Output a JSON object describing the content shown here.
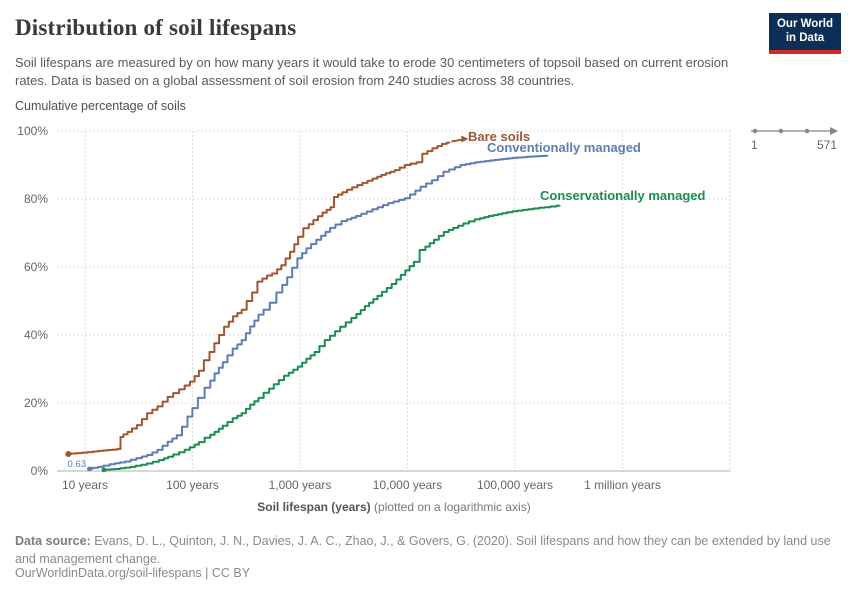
{
  "header": {
    "title": "Distribution of soil lifespans",
    "subtitle": "Soil lifespans are measured by on how many years it would take to erode 30 centimeters of topsoil based on current erosion rates. Data is based on a global assessment of soil erosion from 240 studies across 38 countries.",
    "logo": {
      "line1": "Our World",
      "line2": "in Data"
    }
  },
  "chart": {
    "y_axis_title": "Cumulative percentage of soils",
    "x_axis_title_bold": "Soil lifespan (years)",
    "x_axis_title_note": " (plotted on a logarithmic axis)",
    "start_value_label": "0.63",
    "range_widget": {
      "min": "1",
      "max": "571"
    }
  },
  "footer": {
    "source_label": "Data source:",
    "source_text": " Evans, D. L., Quinton, J. N., Davies, J. A. C., Zhao, J., & Govers, G. (2020). Soil lifespans and how they can be extended by land use and management change.",
    "url": "OurWorldinData.org/soil-lifespans",
    "separator": " | ",
    "license": "CC BY"
  },
  "chart_data": {
    "type": "line",
    "title": "Distribution of soil lifespans",
    "xlabel": "Soil lifespan (years) (plotted on a logarithmic axis)",
    "ylabel": "Cumulative percentage of soils",
    "x_scale": "log10",
    "ylim": [
      0,
      100
    ],
    "grid": true,
    "legend_position": "end-of-line-labels",
    "x_ticks": [
      {
        "value": 10,
        "label": "10 years"
      },
      {
        "value": 100,
        "label": "100 years"
      },
      {
        "value": 1000,
        "label": "1,000 years"
      },
      {
        "value": 10000,
        "label": "10,000 years"
      },
      {
        "value": 100000,
        "label": "100,000 years"
      },
      {
        "value": 1000000,
        "label": "1 million years"
      }
    ],
    "x_grid_values": [
      10,
      100,
      1000,
      10000,
      100000,
      1000000,
      10000000
    ],
    "y_ticks": [
      {
        "value": 0,
        "label": "0%"
      },
      {
        "value": 20,
        "label": "20%"
      },
      {
        "value": 40,
        "label": "40%"
      },
      {
        "value": 60,
        "label": "60%"
      },
      {
        "value": 80,
        "label": "80%"
      },
      {
        "value": 100,
        "label": "100%"
      }
    ],
    "series": [
      {
        "name": "Bare soils",
        "color": "#A1562E",
        "start_marker": true,
        "end_arrow": true,
        "points": [
          [
            7,
            5
          ],
          [
            10,
            5.4
          ],
          [
            14,
            5.9
          ],
          [
            19,
            6.3
          ],
          [
            21,
            6.5
          ],
          [
            21.8,
            10
          ],
          [
            26,
            11.5
          ],
          [
            32,
            13.5
          ],
          [
            40,
            17
          ],
          [
            50,
            19
          ],
          [
            62,
            21.8
          ],
          [
            80,
            24
          ],
          [
            100,
            26.3
          ],
          [
            120,
            29.5
          ],
          [
            136,
            32.6
          ],
          [
            152,
            35
          ],
          [
            168,
            37.6
          ],
          [
            186,
            40
          ],
          [
            208,
            42.4
          ],
          [
            250,
            45.5
          ],
          [
            300,
            47.4
          ],
          [
            340,
            50
          ],
          [
            380,
            52.5
          ],
          [
            425,
            55.7
          ],
          [
            520,
            57.5
          ],
          [
            585,
            58.1
          ],
          [
            700,
            60.5
          ],
          [
            850,
            64.5
          ],
          [
            1000,
            68.9
          ],
          [
            1150,
            71.4
          ],
          [
            1400,
            73.8
          ],
          [
            1700,
            76
          ],
          [
            2000,
            77.6
          ],
          [
            2150,
            80.6
          ],
          [
            2600,
            82
          ],
          [
            3600,
            84.1
          ],
          [
            5000,
            86
          ],
          [
            6000,
            87.1
          ],
          [
            8000,
            88.5
          ],
          [
            10000,
            90
          ],
          [
            13000,
            90.8
          ],
          [
            14500,
            93.3
          ],
          [
            18000,
            94.9
          ],
          [
            22000,
            96.2
          ],
          [
            24500,
            96.6
          ]
        ]
      },
      {
        "name": "Conventionally managed",
        "color": "#5E7DB3",
        "start_marker": true,
        "start_value_label": "0.63",
        "points": [
          [
            11,
            0.63
          ],
          [
            14,
            1.2
          ],
          [
            18,
            2
          ],
          [
            25,
            2.8
          ],
          [
            32,
            3.8
          ],
          [
            40,
            4.7
          ],
          [
            50,
            6.2
          ],
          [
            62,
            8.6
          ],
          [
            75,
            10.5
          ],
          [
            85,
            13
          ],
          [
            95,
            16
          ],
          [
            105,
            18.5
          ],
          [
            120,
            21.5
          ],
          [
            140,
            24.5
          ],
          [
            168,
            28.7
          ],
          [
            200,
            32
          ],
          [
            250,
            36
          ],
          [
            300,
            38.5
          ],
          [
            360,
            42.5
          ],
          [
            430,
            46
          ],
          [
            490,
            47.4
          ],
          [
            560,
            49.5
          ],
          [
            650,
            52.5
          ],
          [
            800,
            57
          ],
          [
            1000,
            62.6
          ],
          [
            1200,
            65.5
          ],
          [
            1500,
            68
          ],
          [
            2000,
            71.5
          ],
          [
            2600,
            73.5
          ],
          [
            3500,
            75
          ],
          [
            5000,
            77
          ],
          [
            7000,
            78.8
          ],
          [
            10000,
            80.2
          ],
          [
            14000,
            83.6
          ],
          [
            18000,
            85.5
          ],
          [
            23000,
            88
          ],
          [
            33000,
            90
          ],
          [
            45000,
            90.8
          ],
          [
            68000,
            91.5
          ],
          [
            100000,
            92.1
          ],
          [
            150000,
            92.5
          ],
          [
            200000,
            92.7
          ]
        ]
      },
      {
        "name": "Conservationally managed",
        "color": "#1D8C51",
        "start_marker": true,
        "points": [
          [
            15,
            0.3
          ],
          [
            20,
            0.6
          ],
          [
            28,
            1.2
          ],
          [
            40,
            2.2
          ],
          [
            52,
            3.2
          ],
          [
            62,
            4.2
          ],
          [
            80,
            5.5
          ],
          [
            100,
            7
          ],
          [
            120,
            8.5
          ],
          [
            140,
            9.8
          ],
          [
            168,
            11.5
          ],
          [
            200,
            13.3
          ],
          [
            250,
            15.5
          ],
          [
            300,
            17
          ],
          [
            360,
            19.5
          ],
          [
            430,
            21.5
          ],
          [
            490,
            23
          ],
          [
            600,
            25.5
          ],
          [
            750,
            28
          ],
          [
            1000,
            30.7
          ],
          [
            1200,
            33
          ],
          [
            1430,
            35
          ],
          [
            1800,
            38.5
          ],
          [
            2500,
            42.4
          ],
          [
            3200,
            45
          ],
          [
            4200,
            48.5
          ],
          [
            5500,
            51.5
          ],
          [
            7500,
            55
          ],
          [
            10000,
            59
          ],
          [
            12000,
            61.5
          ],
          [
            14000,
            65
          ],
          [
            18500,
            68
          ],
          [
            23000,
            70.3
          ],
          [
            28000,
            71.5
          ],
          [
            35000,
            72.8
          ],
          [
            45000,
            74
          ],
          [
            60000,
            75
          ],
          [
            80000,
            75.8
          ],
          [
            100000,
            76.4
          ],
          [
            140000,
            77
          ],
          [
            200000,
            77.6
          ],
          [
            260000,
            78
          ]
        ]
      }
    ]
  }
}
